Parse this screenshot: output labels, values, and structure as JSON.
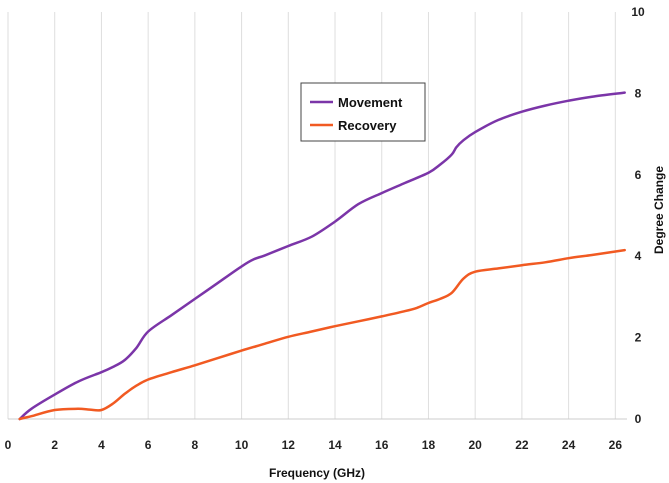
{
  "chart_data": {
    "type": "line",
    "xlabel": "Frequency (GHz)",
    "ylabel": "Degree Change",
    "xlim": [
      0,
      26.5
    ],
    "ylim": [
      0,
      10
    ],
    "x_ticks": [
      "0",
      "2",
      "4",
      "6",
      "8",
      "10",
      "12",
      "14",
      "16",
      "18",
      "20",
      "22",
      "24",
      "26"
    ],
    "y_ticks": [
      "0",
      "2",
      "4",
      "6",
      "8",
      "10"
    ],
    "y_axis_side": "right",
    "grid": "vertical",
    "legend_position": "upper-center",
    "series": [
      {
        "name": "Movement",
        "color": "#7b35a8",
        "x": [
          0.5,
          1,
          2,
          3,
          4,
          4.5,
          5,
          5.5,
          6,
          7,
          8,
          9,
          10,
          10.5,
          11,
          12,
          13,
          14,
          15,
          16,
          17,
          18,
          18.5,
          19,
          19.2,
          19.5,
          20,
          21,
          22,
          23,
          24,
          25,
          26.4
        ],
        "y": [
          0,
          0.25,
          0.6,
          0.92,
          1.15,
          1.28,
          1.45,
          1.75,
          2.15,
          2.55,
          2.95,
          3.35,
          3.75,
          3.92,
          4.02,
          4.25,
          4.48,
          4.85,
          5.28,
          5.55,
          5.8,
          6.05,
          6.25,
          6.5,
          6.68,
          6.85,
          7.05,
          7.35,
          7.55,
          7.7,
          7.82,
          7.92,
          8.02
        ]
      },
      {
        "name": "Recovery",
        "color": "#f15a22",
        "x": [
          0.5,
          1,
          2,
          3,
          3.5,
          4,
          4.5,
          5,
          5.5,
          6,
          7,
          8,
          9,
          10,
          11,
          12,
          13,
          14,
          15,
          16,
          17,
          17.5,
          18,
          18.5,
          19,
          19.5,
          20,
          21,
          22,
          23,
          24,
          25,
          26.4
        ],
        "y": [
          0,
          0.07,
          0.22,
          0.25,
          0.23,
          0.22,
          0.38,
          0.62,
          0.82,
          0.97,
          1.15,
          1.32,
          1.5,
          1.68,
          1.85,
          2.02,
          2.15,
          2.28,
          2.4,
          2.52,
          2.65,
          2.73,
          2.85,
          2.95,
          3.1,
          3.45,
          3.62,
          3.7,
          3.78,
          3.85,
          3.95,
          4.03,
          4.15
        ]
      }
    ]
  }
}
